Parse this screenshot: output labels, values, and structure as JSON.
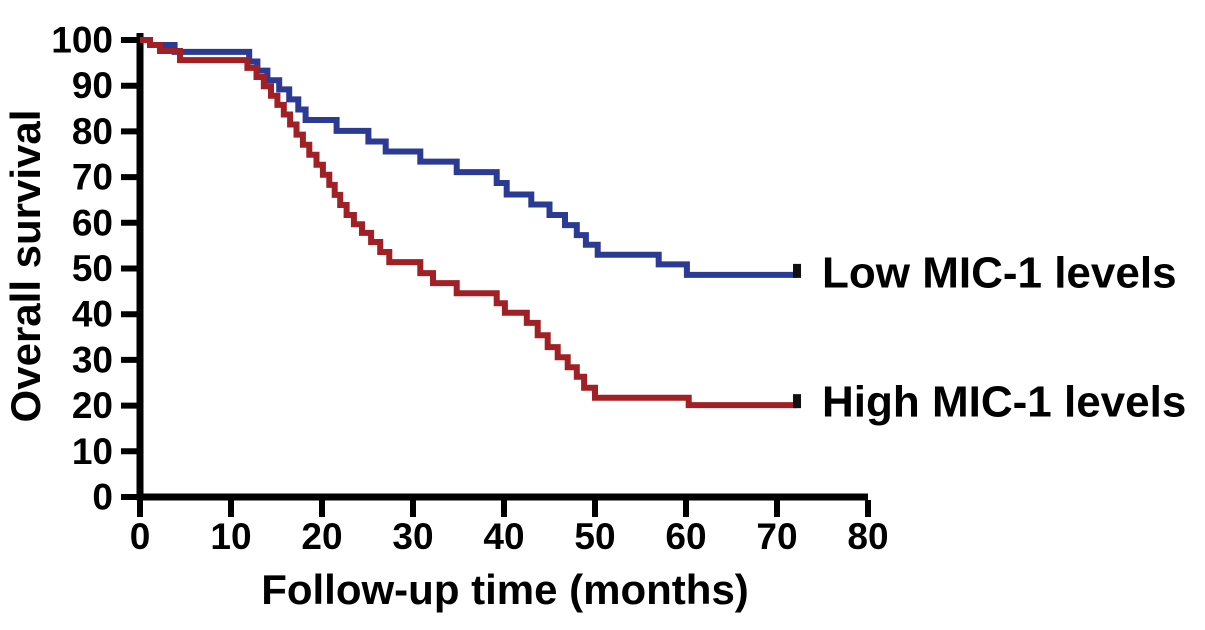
{
  "chart_data": {
    "type": "line",
    "subtype": "kaplan-meier-step",
    "title": "",
    "xlabel": "Follow-up time (months)",
    "ylabel": "Overall survival",
    "xlim": [
      0,
      80
    ],
    "ylim": [
      0,
      100
    ],
    "x_ticks": [
      0,
      10,
      20,
      30,
      40,
      50,
      60,
      70,
      80
    ],
    "y_ticks": [
      0,
      10,
      20,
      30,
      40,
      50,
      60,
      70,
      80,
      90,
      100
    ],
    "grid": false,
    "legend_position": "right-of-curve-end",
    "axis_color": "#000000",
    "censor_tick_color": "#111111",
    "series": [
      {
        "name": "Low MIC-1 levels",
        "color": "#2b3a92",
        "end_x": 72.2,
        "end_value": 48.6,
        "steps": [
          [
            0,
            100
          ],
          [
            1.1,
            98.9
          ],
          [
            3.8,
            97.4
          ],
          [
            12,
            95.3
          ],
          [
            12.9,
            93.3
          ],
          [
            14,
            91.2
          ],
          [
            15.3,
            89.2
          ],
          [
            16.4,
            87.0
          ],
          [
            17.4,
            84.8
          ],
          [
            18.2,
            82.5
          ],
          [
            21.6,
            80.1
          ],
          [
            25.1,
            77.8
          ],
          [
            27,
            75.6
          ],
          [
            30.8,
            73.4
          ],
          [
            34.8,
            71.1
          ],
          [
            39.2,
            68.7
          ],
          [
            40.3,
            66.2
          ],
          [
            43,
            64.0
          ],
          [
            45,
            61.7
          ],
          [
            46.7,
            59.5
          ],
          [
            48,
            57.3
          ],
          [
            49,
            55.2
          ],
          [
            50.3,
            53.0
          ],
          [
            57,
            50.9
          ],
          [
            60.1,
            48.6
          ]
        ]
      },
      {
        "name": "High MIC-1 levels",
        "color": "#a02025",
        "end_x": 72.2,
        "end_value": 20.1,
        "steps": [
          [
            0,
            100
          ],
          [
            1.1,
            98.9
          ],
          [
            2.2,
            97.6
          ],
          [
            4.4,
            95.6
          ],
          [
            11.8,
            93.9
          ],
          [
            12.8,
            91.9
          ],
          [
            13.6,
            89.9
          ],
          [
            14.4,
            87.8
          ],
          [
            15.1,
            85.8
          ],
          [
            15.8,
            83.7
          ],
          [
            16.5,
            81.5
          ],
          [
            17.2,
            79.3
          ],
          [
            17.9,
            77.1
          ],
          [
            18.6,
            74.9
          ],
          [
            19.4,
            72.7
          ],
          [
            20.1,
            70.5
          ],
          [
            20.8,
            68.3
          ],
          [
            21.4,
            66.1
          ],
          [
            22,
            63.9
          ],
          [
            22.7,
            61.7
          ],
          [
            23.5,
            59.7
          ],
          [
            24.4,
            57.8
          ],
          [
            25.4,
            55.8
          ],
          [
            26.4,
            53.6
          ],
          [
            27.4,
            51.4
          ],
          [
            30.8,
            49.0
          ],
          [
            32.2,
            46.8
          ],
          [
            34.8,
            44.6
          ],
          [
            39.2,
            42.4
          ],
          [
            40.1,
            40.3
          ],
          [
            42.5,
            38.1
          ],
          [
            43.7,
            35.4
          ],
          [
            44.8,
            32.8
          ],
          [
            45.9,
            30.6
          ],
          [
            47,
            28.4
          ],
          [
            48,
            26.3
          ],
          [
            48.8,
            23.9
          ],
          [
            50,
            21.7
          ],
          [
            60.3,
            20.1
          ]
        ]
      }
    ]
  },
  "legend": {
    "low_label": "Low MIC-1 levels",
    "high_label": "High MIC-1 levels"
  }
}
